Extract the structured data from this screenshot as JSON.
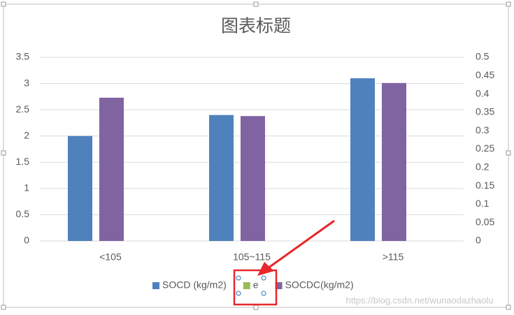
{
  "chart_data": {
    "type": "bar",
    "title": "图表标题",
    "categories": [
      "<105",
      "105~115",
      ">115"
    ],
    "series": [
      {
        "name": "SOCD (kg/m2)",
        "color": "#4f81bd",
        "values": [
          2.0,
          2.4,
          3.1
        ]
      },
      {
        "name": "e",
        "color": "#9bbb59",
        "values": [
          null,
          null,
          null
        ]
      },
      {
        "name": "SOCDC(kg/m2)",
        "color": "#8064a2",
        "values": [
          0.39,
          0.34,
          0.43
        ],
        "axis": "y2"
      }
    ],
    "ylim": [
      0,
      3.5
    ],
    "yticks": [
      0,
      0.5,
      1,
      1.5,
      2,
      2.5,
      3,
      3.5
    ],
    "y2lim": [
      0,
      0.5
    ],
    "y2ticks": [
      0,
      0.05,
      0.1,
      0.15,
      0.2,
      0.25,
      0.3,
      0.35,
      0.4,
      0.45,
      0.5
    ],
    "grid": true,
    "legend": "bottom",
    "watermark": "https://blog.csdn.net/wunaodazhaolu"
  }
}
